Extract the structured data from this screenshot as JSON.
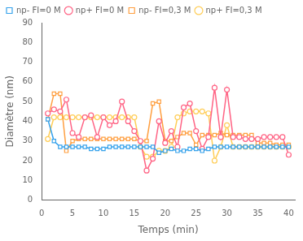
{
  "chart_data": {
    "type": "line",
    "xlabel": "Temps (min)",
    "ylabel": "Diamètre (nm)",
    "x": [
      1,
      2,
      3,
      4,
      5,
      6,
      7,
      8,
      9,
      10,
      11,
      12,
      13,
      14,
      15,
      16,
      17,
      18,
      19,
      20,
      21,
      22,
      23,
      24,
      25,
      26,
      27,
      28,
      29,
      30,
      31,
      32,
      33,
      34,
      35,
      36,
      37,
      38,
      39,
      40
    ],
    "series": [
      {
        "name": "np- FI=0 M",
        "marker": "square",
        "values": [
          41,
          30,
          27,
          27,
          27,
          27,
          27,
          26,
          26,
          26,
          27,
          27,
          27,
          27,
          27,
          27,
          27,
          27,
          24,
          25,
          26,
          25,
          25,
          26,
          26,
          25,
          26,
          27,
          27,
          27,
          27,
          27,
          27,
          27,
          27,
          27,
          27,
          27,
          27,
          27
        ]
      },
      {
        "name": "np+ FI=0 M",
        "marker": "circle",
        "values": [
          44,
          46,
          45,
          51,
          34,
          32,
          42,
          43,
          32,
          42,
          38,
          40,
          50,
          40,
          35,
          30,
          15,
          21,
          40,
          29,
          35,
          27,
          47,
          49,
          35,
          26,
          32,
          57,
          32,
          56,
          32,
          32,
          31,
          31,
          31,
          32,
          32,
          32,
          32,
          23
        ]
      },
      {
        "name": "np- FI=0,3 M",
        "marker": "square",
        "values": [
          41,
          54,
          54,
          25,
          30,
          31,
          31,
          31,
          31,
          31,
          31,
          31,
          31,
          31,
          31,
          30,
          30,
          49,
          50,
          30,
          30,
          32,
          34,
          34,
          28,
          33,
          33,
          33,
          34,
          33,
          33,
          33,
          33,
          33,
          29,
          29,
          29,
          28,
          28,
          28
        ]
      },
      {
        "name": "np+ FI=0,3 M",
        "marker": "circle",
        "values": [
          31,
          42,
          42,
          42,
          42,
          42,
          42,
          42,
          42,
          42,
          42,
          42,
          42,
          42,
          42,
          27,
          22,
          22,
          25,
          25,
          27,
          42,
          44,
          45,
          45,
          45,
          44,
          20,
          27,
          38,
          27,
          27,
          27,
          27,
          27,
          27,
          27,
          27,
          27,
          27
        ]
      }
    ],
    "xlim": [
      0,
      41
    ],
    "xticks": [
      0,
      5,
      10,
      15,
      20,
      25,
      30,
      35,
      40
    ],
    "ylim": [
      0,
      90
    ],
    "yticks": [
      0,
      10,
      20,
      30,
      40,
      50,
      60,
      70,
      80,
      90
    ],
    "grid": false,
    "legend": "upper left"
  }
}
